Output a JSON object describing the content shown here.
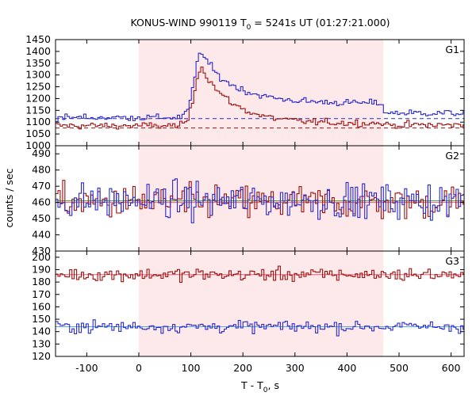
{
  "chart_data": {
    "type": "line",
    "title": "KONUS-WIND 990119 T",
    "title_sub": "0",
    "title_suffix": " = 5241s UT (01:27:21.000)",
    "xlabel": "T - T",
    "xlabel_sub": "0",
    "xlabel_suffix": ", s",
    "ylabel": "counts / sec",
    "xlim": [
      -160,
      625
    ],
    "x_ticks": [
      -100,
      0,
      100,
      200,
      300,
      400,
      500,
      600
    ],
    "highlight_interval": [
      0,
      470
    ],
    "highlight_color": "#fde8ea",
    "series_colors": {
      "red": "#a01010",
      "blue": "#2a2ad0",
      "lightblue": "#5aa8e8",
      "green": "#2e9e2e",
      "pink": "#e0607a"
    },
    "panels": [
      {
        "label": "G1",
        "ylim": [
          1000,
          1450
        ],
        "y_ticks": [
          1000,
          1050,
          1100,
          1150,
          1200,
          1250,
          1300,
          1350,
          1400,
          1450
        ],
        "background_levels": {
          "blue": 1115,
          "red": 1075
        },
        "series": [
          {
            "color": "red",
            "baseline": 1085,
            "noise": 12,
            "bin": 4.5,
            "peak": {
              "t": 118,
              "amp": 250,
              "rise": 18,
              "decay": 60
            },
            "post_offset": 10
          },
          {
            "color": "blue",
            "baseline": 1120,
            "noise": 12,
            "bin": 4.5,
            "peak": {
              "t": 118,
              "amp": 280,
              "rise": 18,
              "decay": 70
            },
            "post_offset": 60
          }
        ]
      },
      {
        "label": "G2",
        "ylim": [
          430,
          495
        ],
        "y_ticks": [
          430,
          440,
          450,
          460,
          470,
          480,
          490
        ],
        "background_levels": {
          "green": 461,
          "pink": 460
        },
        "series": [
          {
            "color": "red",
            "baseline": 460,
            "noise": 9,
            "bin": 4.5
          },
          {
            "color": "blue",
            "baseline": 461,
            "noise": 9,
            "bin": 4.5
          }
        ]
      },
      {
        "label": "G3",
        "ylim": [
          120,
          205
        ],
        "y_ticks": [
          120,
          130,
          140,
          150,
          160,
          170,
          180,
          190,
          200
        ],
        "background_levels": {
          "pink": 186,
          "lightblue": 144
        },
        "series": [
          {
            "color": "red",
            "baseline": 186,
            "noise": 4.5,
            "bin": 4.5
          },
          {
            "color": "blue",
            "baseline": 144,
            "noise": 4,
            "bin": 4.5
          }
        ]
      }
    ]
  }
}
